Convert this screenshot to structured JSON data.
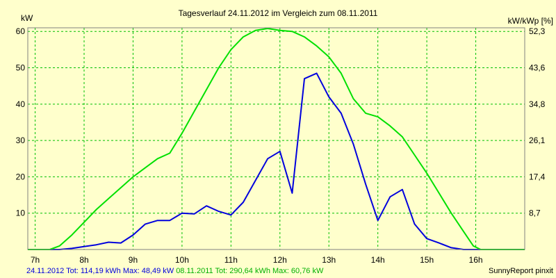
{
  "chart_data": {
    "type": "line",
    "title": "Tagesverlauf 24.11.2012 im Vergleich zum 08.11.2011",
    "ylabel_left": "kW",
    "ylabel_right": "kW/kWp [%]",
    "xlim": [
      6.85,
      17.0
    ],
    "ylim": [
      0,
      61
    ],
    "x_ticks": [
      {
        "x": 7,
        "label": "7h"
      },
      {
        "x": 8,
        "label": "8h"
      },
      {
        "x": 9,
        "label": "9h"
      },
      {
        "x": 10,
        "label": "10h"
      },
      {
        "x": 11,
        "label": "11h"
      },
      {
        "x": 12,
        "label": "12h"
      },
      {
        "x": 13,
        "label": "13h"
      },
      {
        "x": 14,
        "label": "14h"
      },
      {
        "x": 15,
        "label": "15h"
      },
      {
        "x": 16,
        "label": "16h"
      }
    ],
    "y_ticks_left": [
      {
        "y": 10,
        "label": "10"
      },
      {
        "y": 20,
        "label": "20"
      },
      {
        "y": 30,
        "label": "30"
      },
      {
        "y": 40,
        "label": "40"
      },
      {
        "y": 50,
        "label": "50"
      },
      {
        "y": 60,
        "label": "60"
      }
    ],
    "y_ticks_right": [
      {
        "y": 10,
        "label": "8,7"
      },
      {
        "y": 20,
        "label": "17,4"
      },
      {
        "y": 30,
        "label": "26,1"
      },
      {
        "y": 40,
        "label": "34,8"
      },
      {
        "y": 50,
        "label": "43,6"
      },
      {
        "y": 60,
        "label": "52,3"
      }
    ],
    "grid": true,
    "series": [
      {
        "color": "#0000dd",
        "points": [
          [
            6.85,
            0
          ],
          [
            7.5,
            0
          ],
          [
            7.75,
            0.3
          ],
          [
            8,
            0.8
          ],
          [
            8.25,
            1.3
          ],
          [
            8.5,
            2
          ],
          [
            8.75,
            1.8
          ],
          [
            9,
            4
          ],
          [
            9.25,
            7
          ],
          [
            9.5,
            8
          ],
          [
            9.75,
            8
          ],
          [
            10,
            10
          ],
          [
            10.25,
            9.8
          ],
          [
            10.5,
            12
          ],
          [
            10.75,
            10.5
          ],
          [
            11,
            9.5
          ],
          [
            11.25,
            13
          ],
          [
            11.5,
            19
          ],
          [
            11.75,
            25
          ],
          [
            12,
            27
          ],
          [
            12.25,
            15.5
          ],
          [
            12.5,
            47
          ],
          [
            12.75,
            48.5
          ],
          [
            13,
            42
          ],
          [
            13.25,
            37.5
          ],
          [
            13.5,
            29
          ],
          [
            13.75,
            18
          ],
          [
            14,
            8
          ],
          [
            14.25,
            14.5
          ],
          [
            14.5,
            16.5
          ],
          [
            14.75,
            7
          ],
          [
            15,
            3
          ],
          [
            15.25,
            1.8
          ],
          [
            15.5,
            0.5
          ],
          [
            15.75,
            0
          ],
          [
            17,
            0
          ]
        ]
      },
      {
        "color": "#00e000",
        "points": [
          [
            6.85,
            0
          ],
          [
            7.3,
            0
          ],
          [
            7.5,
            1
          ],
          [
            7.75,
            4
          ],
          [
            8,
            7.5
          ],
          [
            8.25,
            11
          ],
          [
            8.5,
            14
          ],
          [
            8.75,
            17
          ],
          [
            9,
            20
          ],
          [
            9.25,
            22.5
          ],
          [
            9.5,
            25
          ],
          [
            9.75,
            26.5
          ],
          [
            10,
            32
          ],
          [
            10.25,
            38
          ],
          [
            10.5,
            44
          ],
          [
            10.75,
            50
          ],
          [
            11,
            55
          ],
          [
            11.25,
            58.5
          ],
          [
            11.5,
            60.3
          ],
          [
            11.75,
            60.8
          ],
          [
            12,
            60.3
          ],
          [
            12.25,
            60
          ],
          [
            12.5,
            58.5
          ],
          [
            12.75,
            56
          ],
          [
            13,
            53
          ],
          [
            13.25,
            48.5
          ],
          [
            13.5,
            41.5
          ],
          [
            13.75,
            37.5
          ],
          [
            14,
            36.5
          ],
          [
            14.25,
            34
          ],
          [
            14.5,
            31
          ],
          [
            14.75,
            26
          ],
          [
            15,
            21
          ],
          [
            15.25,
            15.5
          ],
          [
            15.5,
            10
          ],
          [
            15.75,
            5
          ],
          [
            15.95,
            1
          ],
          [
            16.1,
            0
          ],
          [
            17,
            0
          ]
        ]
      }
    ]
  },
  "legend": {
    "series1": "24.11.2012 Tot: 114,19 kWh Max: 48,49 kW",
    "series2": "08.11.2011 Tot: 290,64 kWh Max: 60,76 kW"
  },
  "footer_right": "SunnyReport pinxit",
  "colors": {
    "background": "#ffffcc",
    "grid": "#00c000",
    "series1": "#0000dd",
    "series2": "#00e000"
  }
}
